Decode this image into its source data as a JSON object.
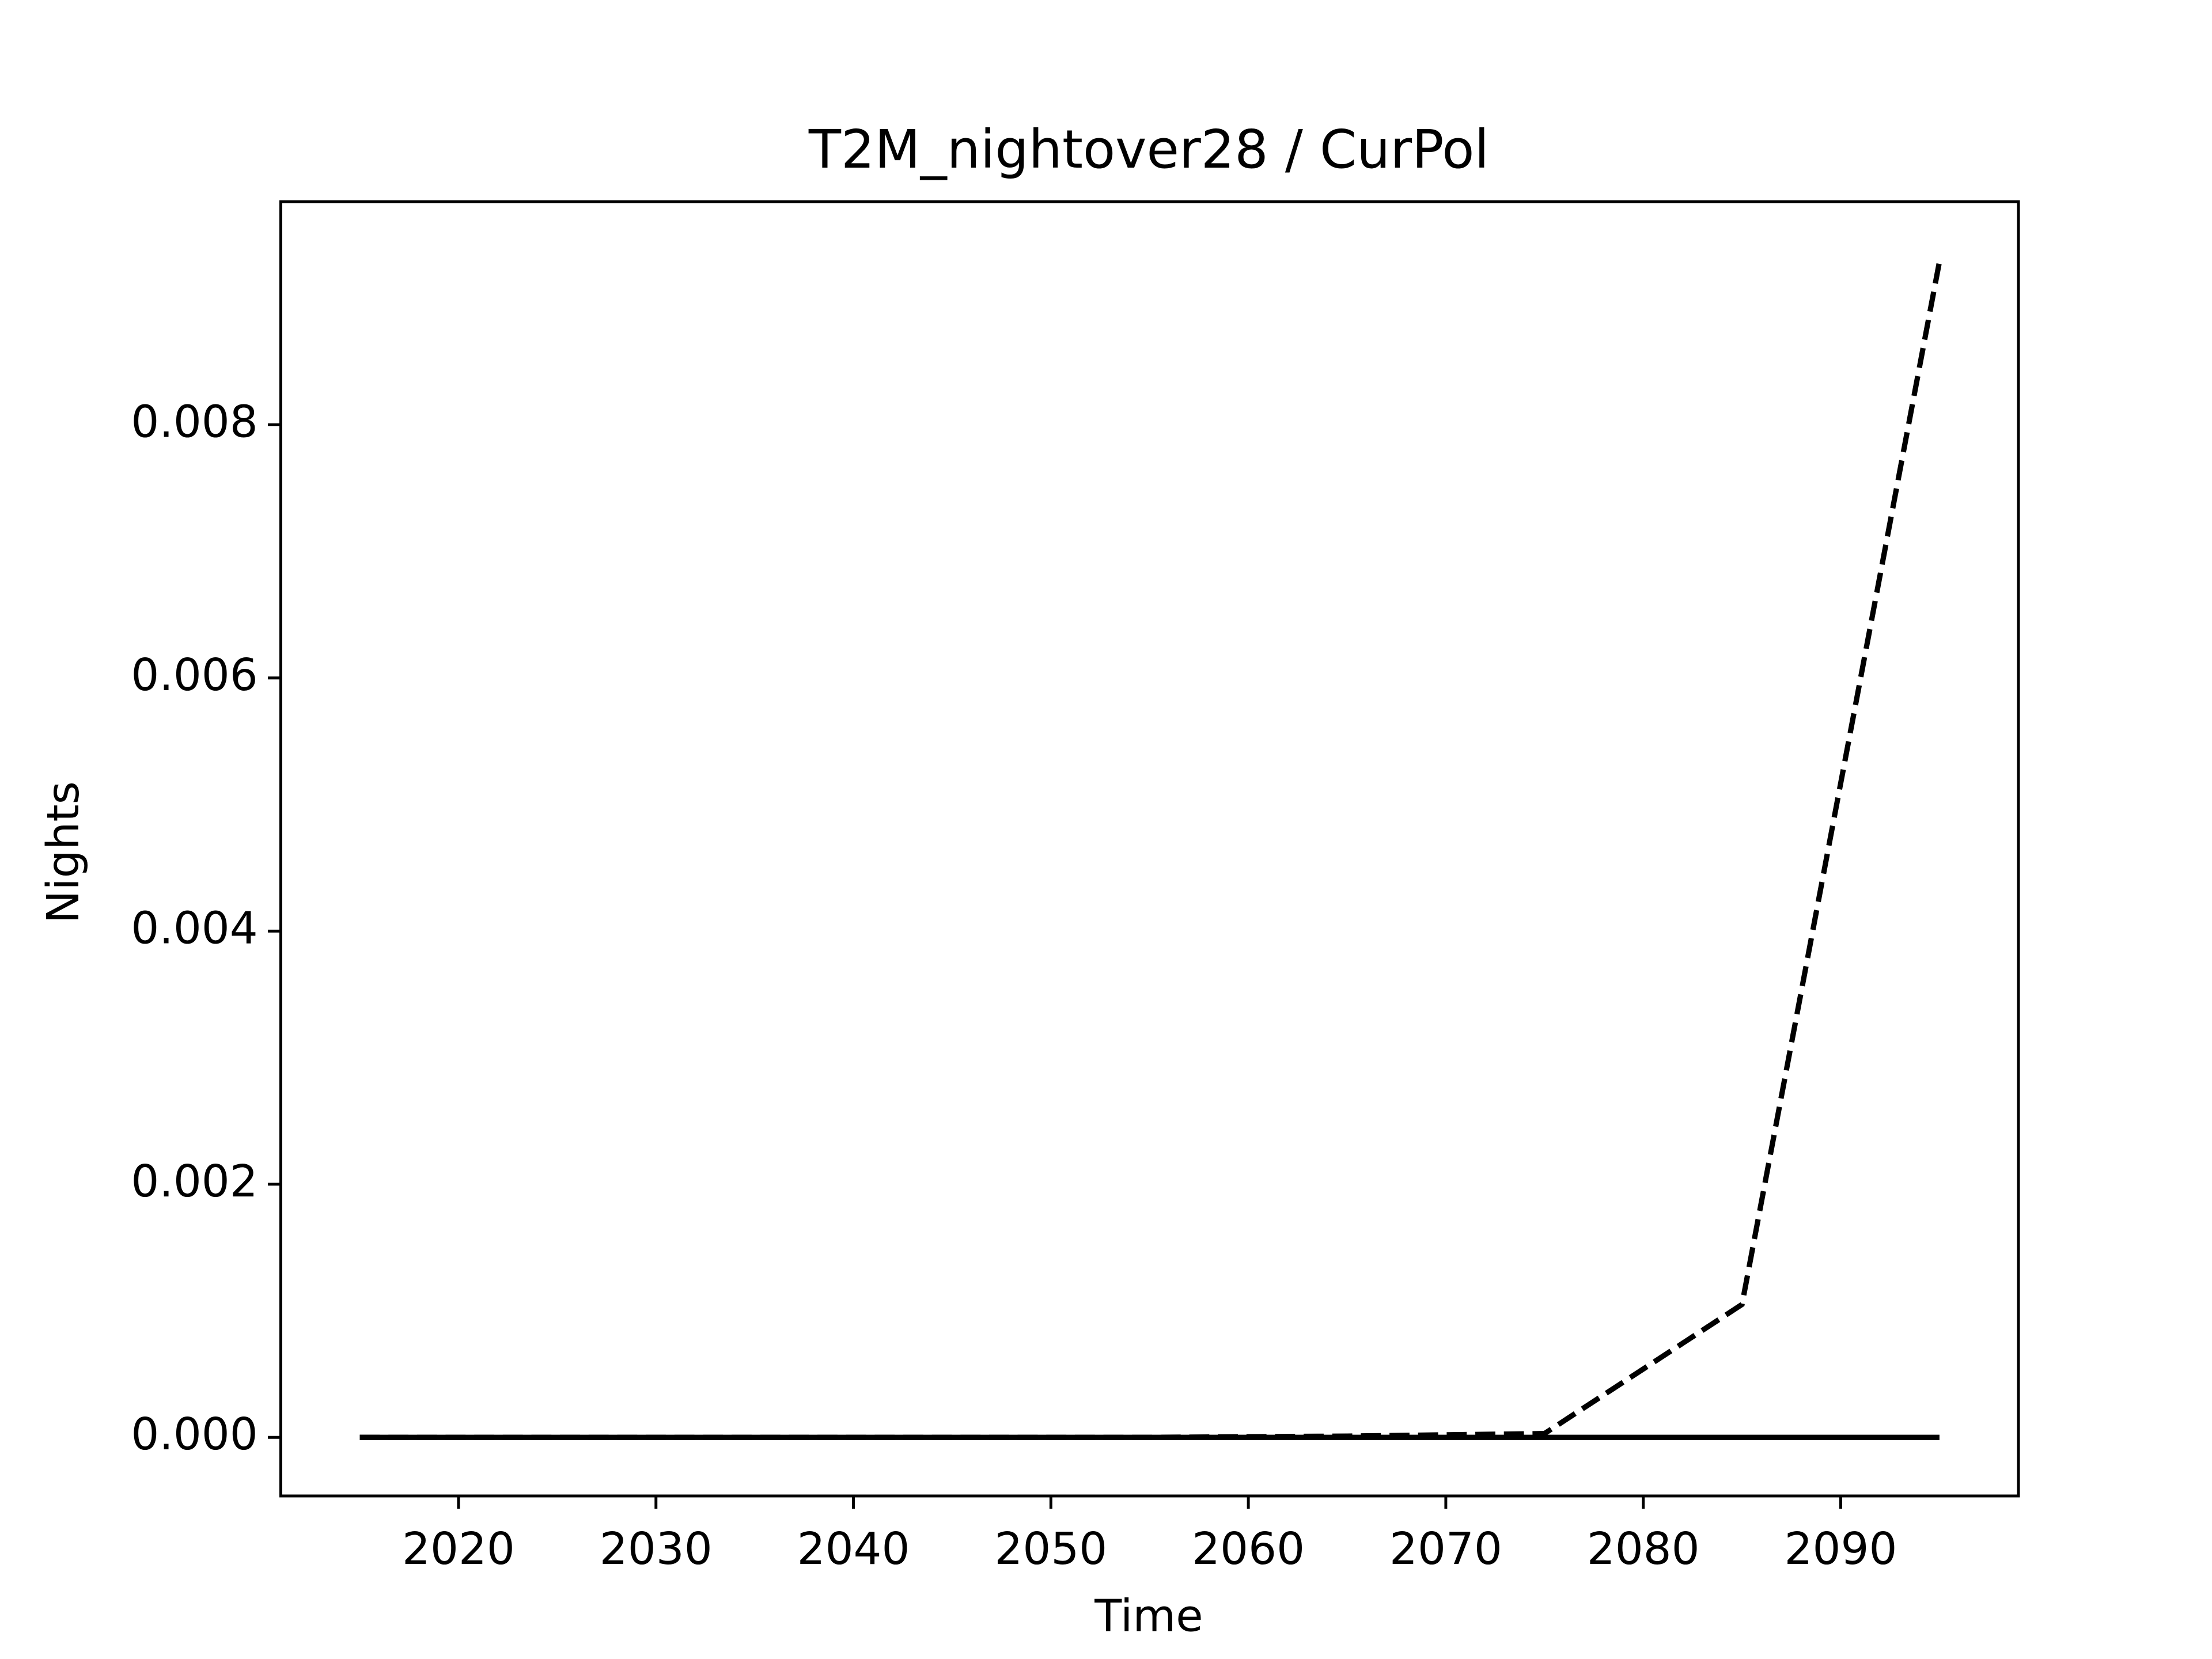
{
  "chart_data": {
    "type": "line",
    "title": "T2M_nightover28 / CurPol",
    "x_label": "Time",
    "y_label": "Nights",
    "x": [
      2015,
      2025,
      2035,
      2045,
      2055,
      2065,
      2075,
      2085,
      2095
    ],
    "series": [
      {
        "color": "#000000",
        "linestyle": "dashed",
        "values": [
          0,
          0,
          0,
          0,
          0,
          1e-05,
          3e-05,
          0.00105,
          0.00929
        ]
      },
      {
        "color": "#000000",
        "linestyle": "solid",
        "values": [
          0,
          0,
          0,
          0,
          0,
          0,
          0,
          0,
          0
        ]
      }
    ],
    "xlim": [
      2011,
      2099
    ],
    "xticks": [
      2020,
      2030,
      2040,
      2050,
      2060,
      2070,
      2080,
      2090
    ],
    "ylim": [
      -0.000463,
      0.009763
    ],
    "yticks": [
      {
        "value": 0,
        "label": "0.000"
      },
      {
        "value": 0.002,
        "label": "0.002"
      },
      {
        "value": 0.004,
        "label": "0.004"
      },
      {
        "value": 0.006,
        "label": "0.006"
      },
      {
        "value": 0.008,
        "label": "0.008"
      }
    ],
    "grid": false
  }
}
